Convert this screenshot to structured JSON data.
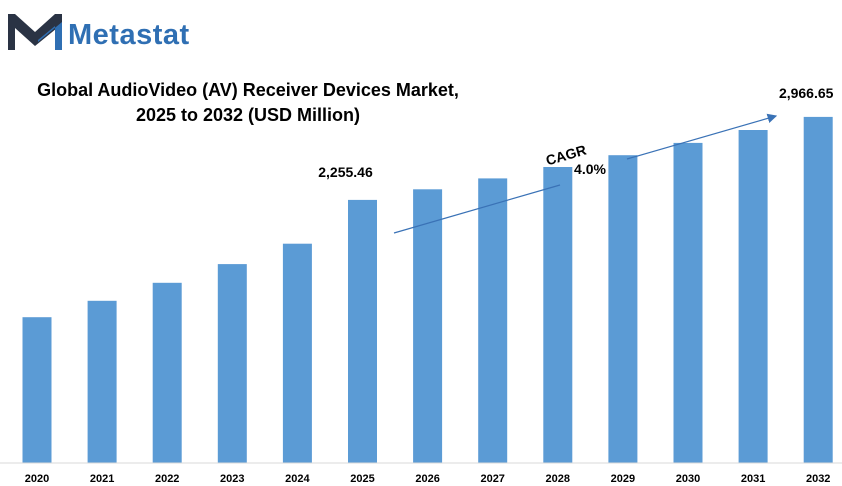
{
  "brand": {
    "name": "Metastat",
    "logo_icon": "metastat-m-logo-icon",
    "colors": {
      "icon_dark": "#2a3344",
      "icon_blue": "#2f6fb3",
      "text_blue": "#2f6fb3"
    }
  },
  "colors": {
    "bar": "#5b9bd5",
    "trend_line": "#3a72b6",
    "axis": "#d9d9d9"
  },
  "chart_data": {
    "type": "bar",
    "title": "Global AudioVideo (AV) Receiver Devices Market, 2025 to 2032 (USD Million)",
    "title_lines": [
      "Global AudioVideo (AV) Receiver Devices Market,",
      "2025 to 2032 (USD Million)"
    ],
    "xlabel": "",
    "ylabel": "",
    "categories": [
      "2020",
      "2021",
      "2022",
      "2023",
      "2024",
      "2025",
      "2026",
      "2027",
      "2028",
      "2029",
      "2030",
      "2031",
      "2032"
    ],
    "values": [
      1250,
      1390,
      1545,
      1705,
      1880,
      2255.46,
      2345.68,
      2439.51,
      2537.09,
      2638.57,
      2744.11,
      2853.87,
      2966.65
    ],
    "ylim": [
      0,
      3000
    ],
    "grid": false,
    "legend": "none",
    "data_labels": [
      {
        "category": "2025",
        "text": "2,255.46"
      },
      {
        "category": "2032",
        "text": "2,966.65"
      }
    ],
    "annotation": {
      "label": "CAGR",
      "value": "4.0%",
      "arrow_from": "2025",
      "arrow_to": "2032"
    }
  }
}
